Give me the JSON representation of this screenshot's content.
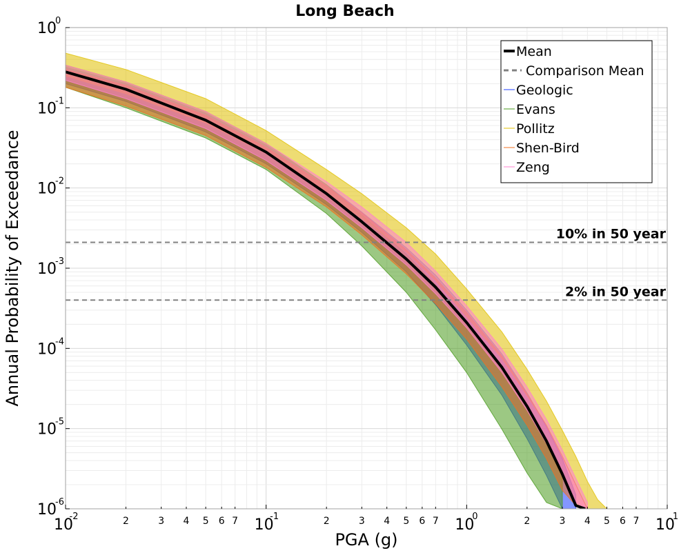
{
  "chart_data": {
    "type": "line",
    "title": "Long Beach",
    "xlabel": "PGA (g)",
    "ylabel": "Annual Probability of Exceedance",
    "xscale": "log",
    "yscale": "log",
    "xlim": [
      0.01,
      10
    ],
    "ylim": [
      1e-06,
      1
    ],
    "grid": true,
    "legend_position": "top-right",
    "x_major_ticks": [
      {
        "base": "10",
        "exp": "-2",
        "value": 0.01
      },
      {
        "base": "10",
        "exp": "-1",
        "value": 0.1
      },
      {
        "base": "10",
        "exp": "0",
        "value": 1
      },
      {
        "base": "10",
        "exp": "1",
        "value": 10
      }
    ],
    "x_minor_tick_labels": [
      "2",
      "3",
      "4",
      "5",
      "6",
      "7"
    ],
    "y_major_ticks": [
      {
        "base": "10",
        "exp": "0",
        "value": 1
      },
      {
        "base": "10",
        "exp": "-1",
        "value": 0.1
      },
      {
        "base": "10",
        "exp": "-2",
        "value": 0.01
      },
      {
        "base": "10",
        "exp": "-3",
        "value": 0.001
      },
      {
        "base": "10",
        "exp": "-4",
        "value": 0.0001
      },
      {
        "base": "10",
        "exp": "-5",
        "value": 1e-05
      },
      {
        "base": "10",
        "exp": "-6",
        "value": 1e-06
      }
    ],
    "reference_lines": [
      {
        "label": "10% in 50 year",
        "y": 0.0021,
        "color": "#808080"
      },
      {
        "label": "2% in 50 year",
        "y": 0.0004,
        "color": "#808080"
      }
    ],
    "series": [
      {
        "name": "Mean",
        "color": "#000000",
        "style": "solid",
        "x": [
          0.01,
          0.02,
          0.05,
          0.1,
          0.2,
          0.3,
          0.5,
          0.7,
          1.0,
          1.5,
          2.0,
          2.5,
          3.0,
          3.5,
          3.9
        ],
        "y": [
          0.28,
          0.17,
          0.07,
          0.028,
          0.0085,
          0.0038,
          0.0013,
          0.00058,
          0.00021,
          5.8e-05,
          1.9e-05,
          7e-06,
          2.7e-06,
          1.1e-06,
          1e-06
        ]
      },
      {
        "name": "Comparison Mean",
        "color": "#808080",
        "style": "dashed",
        "x": [],
        "y": []
      },
      {
        "name": "Geologic",
        "color": "#1f3fff",
        "style": "band",
        "x": [
          0.01,
          0.02,
          0.05,
          0.1,
          0.2,
          0.3,
          0.5,
          0.7,
          1.0,
          1.5,
          2.0,
          2.5,
          3.0,
          3.5
        ],
        "y_low": [
          0.2,
          0.12,
          0.05,
          0.02,
          0.0062,
          0.0028,
          0.0009,
          0.00035,
          0.00011,
          2.6e-05,
          7.5e-06,
          2.6e-06,
          1e-06,
          1e-06
        ],
        "y_high": [
          0.32,
          0.2,
          0.085,
          0.034,
          0.011,
          0.005,
          0.0018,
          0.00082,
          0.0003,
          8.5e-05,
          2.8e-05,
          1.05e-05,
          4.2e-06,
          1.5e-06
        ]
      },
      {
        "name": "Evans",
        "color": "#4a9a1e",
        "style": "band",
        "x": [
          0.01,
          0.02,
          0.05,
          0.1,
          0.2,
          0.3,
          0.5,
          0.7,
          1.0,
          1.5,
          2.0,
          2.5,
          3.0
        ],
        "y_low": [
          0.18,
          0.1,
          0.042,
          0.017,
          0.0048,
          0.0019,
          0.0005,
          0.00017,
          5e-05,
          9.8e-06,
          2.8e-06,
          1.2e-06,
          1e-06
        ],
        "y_high": [
          0.34,
          0.21,
          0.09,
          0.036,
          0.011,
          0.0046,
          0.0015,
          0.00062,
          0.00022,
          5.5e-05,
          1.8e-05,
          6.5e-06,
          2.5e-06
        ]
      },
      {
        "name": "Pollitz",
        "color": "#e0c000",
        "style": "band",
        "x": [
          0.01,
          0.02,
          0.05,
          0.1,
          0.2,
          0.3,
          0.5,
          0.7,
          1.0,
          1.5,
          2.0,
          2.5,
          3.0,
          3.5,
          4.0,
          4.5,
          5.0
        ],
        "y_low": [
          0.25,
          0.15,
          0.065,
          0.027,
          0.0085,
          0.0042,
          0.0016,
          0.0007,
          0.00025,
          7.5e-05,
          2.6e-05,
          1.1e-05,
          4.5e-06,
          2e-06,
          1e-06,
          1e-06,
          1e-06
        ],
        "y_high": [
          0.48,
          0.3,
          0.13,
          0.052,
          0.017,
          0.0085,
          0.0032,
          0.0015,
          0.00055,
          0.00016,
          5.5e-05,
          2.2e-05,
          9.5e-06,
          4.5e-06,
          2.2e-06,
          1.3e-06,
          1e-06
        ]
      },
      {
        "name": "Shen-Bird",
        "color": "#f07020",
        "style": "band",
        "x": [
          0.01,
          0.02,
          0.05,
          0.1,
          0.2,
          0.3,
          0.5,
          0.7,
          1.0,
          1.5,
          2.0,
          2.5,
          3.0,
          3.5,
          4.0
        ],
        "y_low": [
          0.18,
          0.105,
          0.045,
          0.018,
          0.0058,
          0.0026,
          0.00085,
          0.00036,
          0.00013,
          3.3e-05,
          1.1e-05,
          4.2e-06,
          1.7e-06,
          1.1e-06,
          1e-06
        ],
        "y_high": [
          0.3,
          0.19,
          0.08,
          0.032,
          0.0105,
          0.0049,
          0.0017,
          0.00075,
          0.00028,
          8e-05,
          2.7e-05,
          1.1e-05,
          4.5e-06,
          2e-06,
          1e-06
        ]
      },
      {
        "name": "Zeng",
        "color": "#ff80d0",
        "style": "band",
        "x": [
          0.01,
          0.02,
          0.05,
          0.1,
          0.2,
          0.3,
          0.5,
          0.7,
          1.0,
          1.5,
          2.0,
          2.5,
          3.0,
          3.5,
          4.0
        ],
        "y_low": [
          0.22,
          0.13,
          0.055,
          0.022,
          0.007,
          0.0032,
          0.0011,
          0.00048,
          0.00018,
          5e-05,
          1.7e-05,
          6.5e-06,
          2.7e-06,
          1.2e-06,
          1e-06
        ],
        "y_high": [
          0.34,
          0.21,
          0.09,
          0.036,
          0.012,
          0.0058,
          0.0021,
          0.00092,
          0.00034,
          9.8e-05,
          3.3e-05,
          1.3e-05,
          5.4e-06,
          2.4e-06,
          1.2e-06
        ]
      }
    ]
  }
}
